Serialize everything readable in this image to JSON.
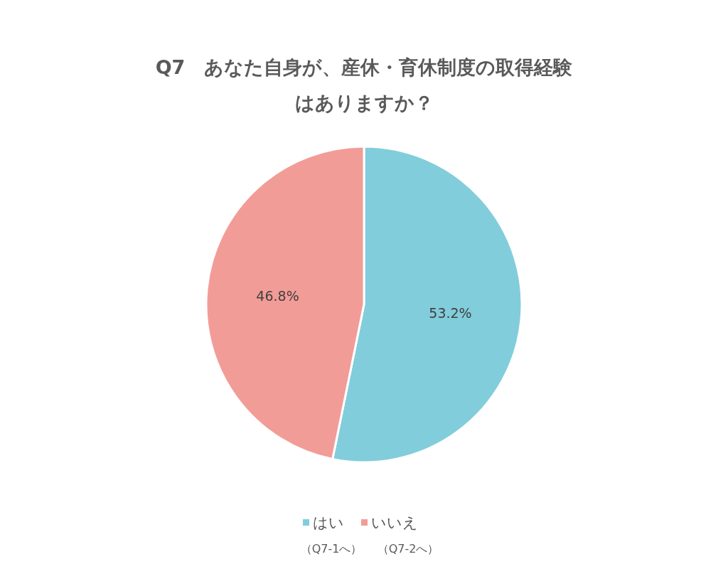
{
  "chart_data": {
    "type": "pie",
    "title": "Q7　あなた自身が、産休・育休制度の取得経験はありますか？",
    "categories": [
      "はい",
      "いいえ"
    ],
    "values": [
      53.2,
      46.8
    ],
    "colors": [
      "#82cddb",
      "#f29c97"
    ],
    "value_labels": [
      "53.2%",
      "46.8%"
    ],
    "legend": "bottom",
    "annotations": [
      "（Q7-1へ）",
      "（Q7-2へ）"
    ]
  }
}
